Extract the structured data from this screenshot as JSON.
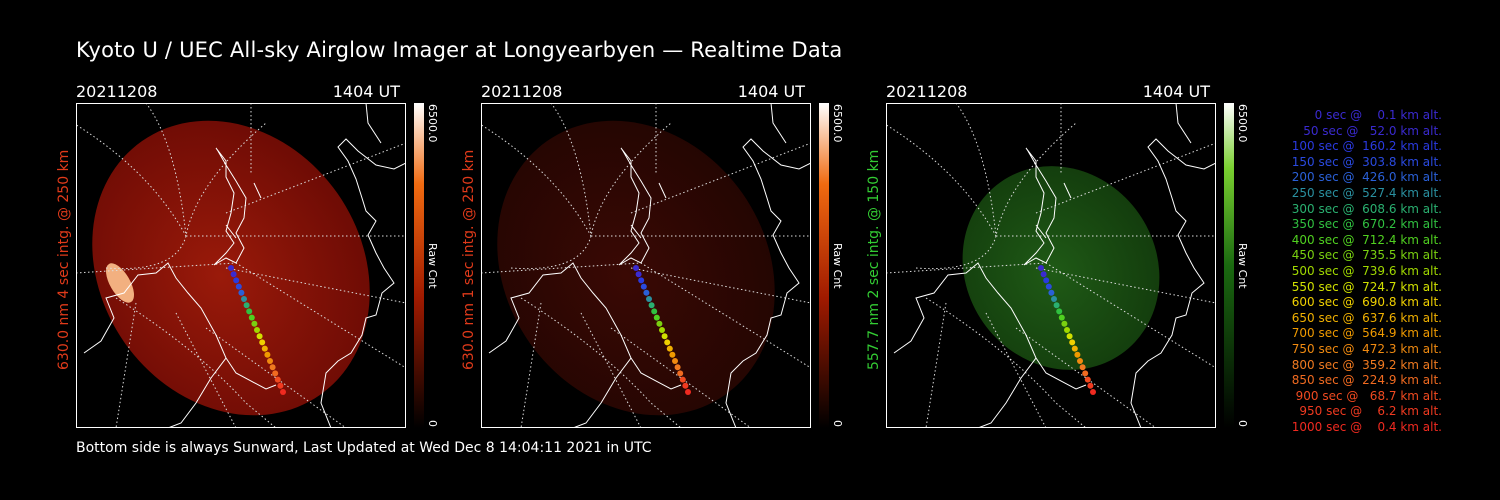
{
  "title": "Kyoto U / UEC All-sky Airglow Imager at Longyearbyen — Realtime Data",
  "footer": "Bottom side is always Sunward, Last Updated at Wed Dec  8 14:04:11 2021 in UTC",
  "panels": [
    {
      "date": "20211208",
      "time": "1404 UT",
      "side_label": "630.0 nm 4 sec intg. @ 250 km",
      "side_color": "#e03a1a",
      "cb_max": "6500.0",
      "cb_min": "0",
      "cb_unit": "Raw Cnt",
      "tint": "red"
    },
    {
      "date": "20211208",
      "time": "1404 UT",
      "side_label": "630.0 nm 1 sec intg. @ 250 km",
      "side_color": "#e03a1a",
      "cb_max": "6500.0",
      "cb_min": "0",
      "cb_unit": "Raw Cnt",
      "tint": "darkred"
    },
    {
      "date": "20211208",
      "time": "1404 UT",
      "side_label": "557.7 nm 2 sec intg. @ 150 km",
      "side_color": "#33cc33",
      "cb_max": "6500.0",
      "cb_min": "0",
      "cb_unit": "Raw Cnt",
      "tint": "green"
    }
  ],
  "legend": [
    {
      "text": "   0 sec @    0.1 km alt.",
      "color": "#3a2ad0"
    },
    {
      "text": "  50 sec @   52.0 km alt.",
      "color": "#3a2ad0"
    },
    {
      "text": " 100 sec @  160.2 km alt.",
      "color": "#2a3ae0"
    },
    {
      "text": " 150 sec @  303.8 km alt.",
      "color": "#2a4ae0"
    },
    {
      "text": " 200 sec @  426.0 km alt.",
      "color": "#2a60d8"
    },
    {
      "text": " 250 sec @  527.4 km alt.",
      "color": "#2a90a0"
    },
    {
      "text": " 300 sec @  608.6 km alt.",
      "color": "#2ab070"
    },
    {
      "text": " 350 sec @  670.2 km alt.",
      "color": "#30c040"
    },
    {
      "text": " 400 sec @  712.4 km alt.",
      "color": "#50d020"
    },
    {
      "text": " 450 sec @  735.5 km alt.",
      "color": "#7ad010"
    },
    {
      "text": " 500 sec @  739.6 km alt.",
      "color": "#a0d800"
    },
    {
      "text": " 550 sec @  724.7 km alt.",
      "color": "#d0e000"
    },
    {
      "text": " 600 sec @  690.8 km alt.",
      "color": "#f0d000"
    },
    {
      "text": " 650 sec @  637.6 km alt.",
      "color": "#f0b000"
    },
    {
      "text": " 700 sec @  564.9 km alt.",
      "color": "#f09a00"
    },
    {
      "text": " 750 sec @  472.3 km alt.",
      "color": "#f08a10"
    },
    {
      "text": " 800 sec @  359.2 km alt.",
      "color": "#f07a20"
    },
    {
      "text": " 850 sec @  224.9 km alt.",
      "color": "#f06a20"
    },
    {
      "text": " 900 sec @   68.7 km alt.",
      "color": "#f04a20"
    },
    {
      "text": " 950 sec @    6.2 km alt.",
      "color": "#f03a20"
    },
    {
      "text": "1000 sec @    0.4 km alt.",
      "color": "#f02a20"
    }
  ]
}
